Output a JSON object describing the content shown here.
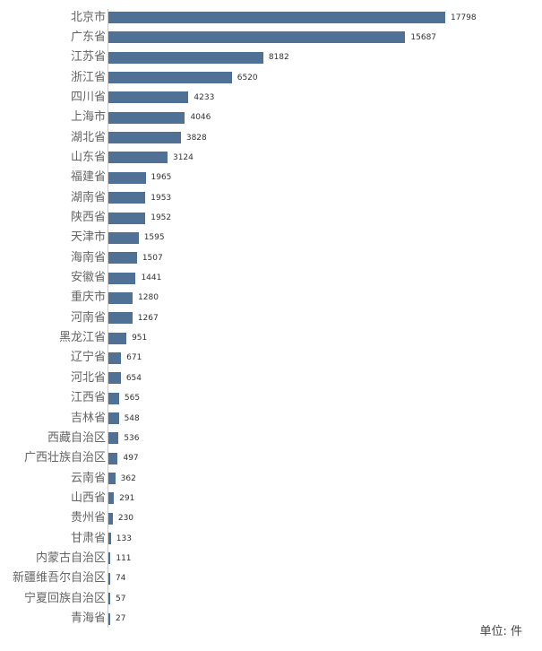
{
  "chart_data": {
    "type": "bar",
    "orientation": "horizontal",
    "categories": [
      "北京市",
      "广东省",
      "江苏省",
      "浙江省",
      "四川省",
      "上海市",
      "湖北省",
      "山东省",
      "福建省",
      "湖南省",
      "陕西省",
      "天津市",
      "海南省",
      "安徽省",
      "重庆市",
      "河南省",
      "黑龙江省",
      "辽宁省",
      "河北省",
      "江西省",
      "吉林省",
      "西藏自治区",
      "广西壮族自治区",
      "云南省",
      "山西省",
      "贵州省",
      "甘肃省",
      "内蒙古自治区",
      "新疆维吾尔自治区",
      "宁夏回族自治区",
      "青海省"
    ],
    "values": [
      17798,
      15687,
      8182,
      6520,
      4233,
      4046,
      3828,
      3124,
      1965,
      1953,
      1952,
      1595,
      1507,
      1441,
      1280,
      1267,
      951,
      671,
      654,
      565,
      548,
      536,
      497,
      362,
      291,
      230,
      133,
      111,
      74,
      57,
      27
    ],
    "unit_label": "单位: 件",
    "bar_color": "#4f7196",
    "data_labels": true,
    "grid": false
  }
}
